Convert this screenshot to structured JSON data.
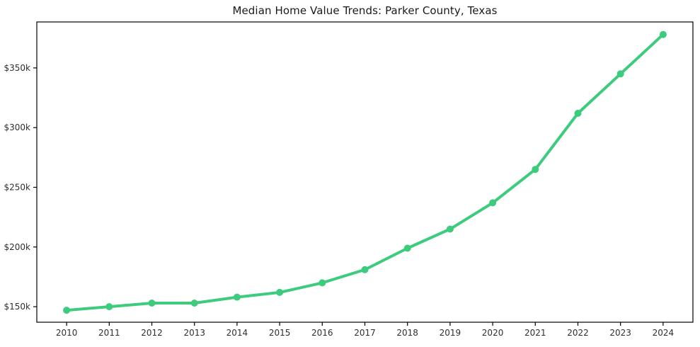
{
  "chart_data": {
    "type": "line",
    "title": "Median Home Value Trends: Parker County, Texas",
    "xlabel": "",
    "ylabel": "",
    "unit": "USD thousands",
    "x": [
      2010,
      2011,
      2012,
      2013,
      2014,
      2015,
      2016,
      2017,
      2018,
      2019,
      2020,
      2021,
      2022,
      2023,
      2024
    ],
    "xtick_labels": [
      "2010",
      "2011",
      "2012",
      "2013",
      "2014",
      "2015",
      "2016",
      "2017",
      "2018",
      "2019",
      "2020",
      "2021",
      "2022",
      "2023",
      "2024"
    ],
    "series": [
      {
        "name": "Median home value",
        "values": [
          147,
          150,
          153,
          153,
          158,
          162,
          170,
          181,
          199,
          215,
          237,
          265,
          312,
          345,
          378
        ],
        "color": "#3dcb7d",
        "marker": "circle",
        "marker_radius": 5,
        "line_width": 4
      }
    ],
    "xlim": [
      2009.3,
      2024.7
    ],
    "ylim": [
      137,
      388.5
    ],
    "ytick_values": [
      150,
      200,
      250,
      300,
      350
    ],
    "ytick_labels": [
      "$150k",
      "$200k",
      "$250k",
      "$300k",
      "$350k"
    ],
    "grid": false,
    "legend": "none",
    "frame": true,
    "axis_color": "#000000",
    "tick_label_color": "#2e2e2e",
    "title_color": "#1a1a1a",
    "background": "#ffffff"
  }
}
